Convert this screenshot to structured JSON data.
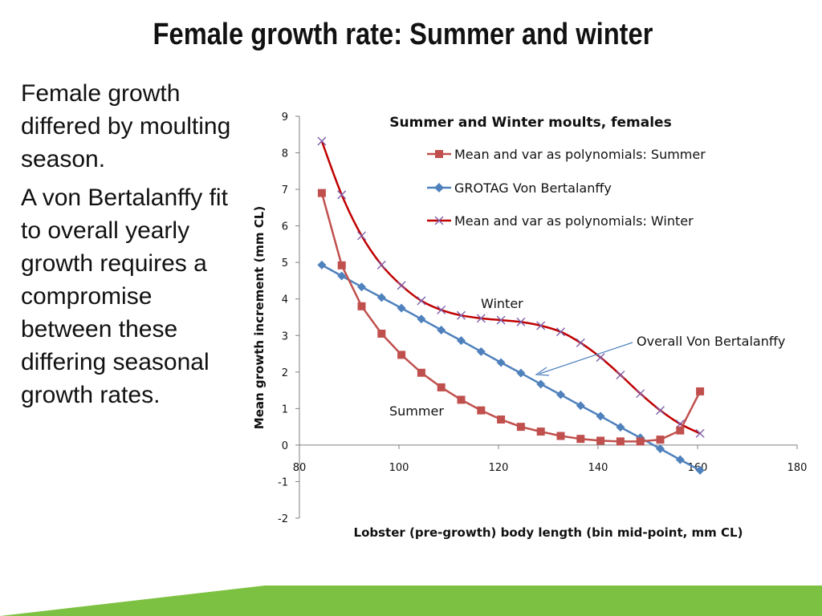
{
  "slide": {
    "title": "Female growth rate:  Summer and winter",
    "paragraphs": [
      "Female growth differed by moulting season.",
      "A von Bertalanffy fit to overall yearly growth requires a compromise between these differing seasonal growth rates."
    ]
  },
  "colors": {
    "summer": "#c0504d",
    "grotag": "#4f81bd",
    "winter_line": "#c00000",
    "winter_marker": "#7f5fa8",
    "footer_green": "#7dc142",
    "axis": "#7f7f7f"
  },
  "chart_data": {
    "type": "line",
    "title": "Summer and Winter moults, females",
    "xlabel": "Lobster (pre-growth) body length (bin mid-point, mm CL)",
    "ylabel": "Mean growth increment (mm CL)",
    "xlim": [
      80,
      180
    ],
    "ylim": [
      -2,
      9
    ],
    "xticks": [
      "80",
      "100",
      "120",
      "140",
      "160",
      "180"
    ],
    "yticks": [
      "-2",
      "-1",
      "0",
      "1",
      "2",
      "3",
      "4",
      "5",
      "6",
      "7",
      "8",
      "9"
    ],
    "grid": false,
    "legend_position": "top-right",
    "series": [
      {
        "name": "Mean and var as polynomials:  Summer",
        "marker": "square",
        "x": [
          84.5,
          88.5,
          92.5,
          96.5,
          100.5,
          104.5,
          108.5,
          112.5,
          116.5,
          120.5,
          124.5,
          128.5,
          132.5,
          136.5,
          140.5,
          144.5,
          148.5,
          152.5,
          156.5,
          160.5
        ],
        "y": [
          6.9,
          4.92,
          3.8,
          3.05,
          2.47,
          1.98,
          1.58,
          1.24,
          0.95,
          0.7,
          0.5,
          0.37,
          0.25,
          0.17,
          0.12,
          0.1,
          0.1,
          0.15,
          0.4,
          1.47
        ]
      },
      {
        "name": "GROTAG Von Bertalanffy",
        "marker": "diamond",
        "x": [
          84.5,
          88.5,
          92.5,
          96.5,
          100.5,
          104.5,
          108.5,
          112.5,
          116.5,
          120.5,
          124.5,
          128.5,
          132.5,
          136.5,
          140.5,
          144.5,
          148.5,
          152.5,
          156.5,
          160.5
        ],
        "y": [
          4.93,
          4.63,
          4.33,
          4.04,
          3.75,
          3.45,
          3.15,
          2.86,
          2.56,
          2.26,
          1.97,
          1.67,
          1.38,
          1.08,
          0.79,
          0.49,
          0.2,
          -0.1,
          -0.4,
          -0.69
        ]
      },
      {
        "name": "Mean and var as polynomials:  Winter",
        "marker": "x",
        "x": [
          84.5,
          88.5,
          92.5,
          96.5,
          100.5,
          104.5,
          108.5,
          112.5,
          116.5,
          120.5,
          124.5,
          128.5,
          132.5,
          136.5,
          140.5,
          144.5,
          148.5,
          152.5,
          156.5,
          160.5
        ],
        "y": [
          8.32,
          6.85,
          5.73,
          4.93,
          4.37,
          3.95,
          3.7,
          3.55,
          3.47,
          3.42,
          3.37,
          3.27,
          3.1,
          2.8,
          2.4,
          1.92,
          1.41,
          0.95,
          0.58,
          0.32
        ]
      }
    ],
    "annotations": {
      "winter": "Winter",
      "summer": "Summer",
      "overall": "Overall Von Bertalanffy"
    }
  }
}
